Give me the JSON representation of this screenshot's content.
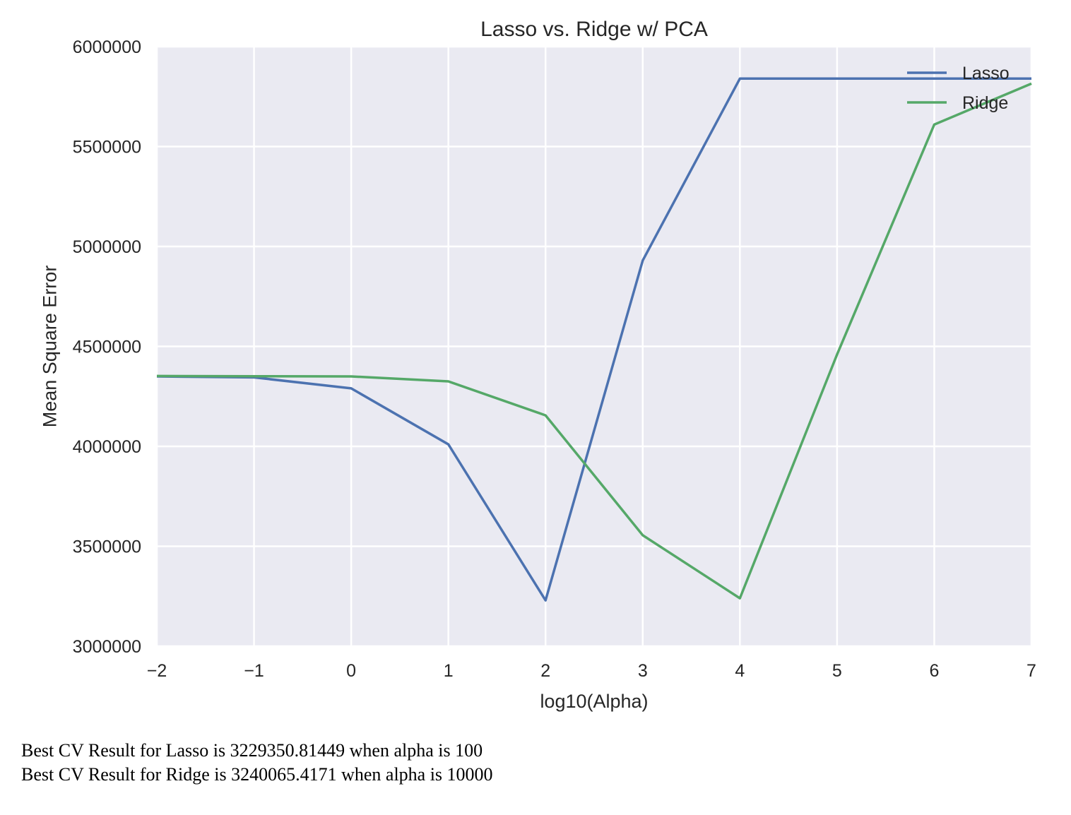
{
  "chart_data": {
    "type": "line",
    "title": "Lasso vs. Ridge w/ PCA",
    "xlabel": "log10(Alpha)",
    "ylabel": "Mean Square Error",
    "xlim": [
      -2,
      7
    ],
    "ylim": [
      3000000,
      6000000
    ],
    "xticks": [
      -2,
      -1,
      0,
      1,
      2,
      3,
      4,
      5,
      6,
      7
    ],
    "xtick_labels": [
      "−2",
      "−1",
      "0",
      "1",
      "2",
      "3",
      "4",
      "5",
      "6",
      "7"
    ],
    "yticks": [
      3000000,
      3500000,
      4000000,
      4500000,
      5000000,
      5500000,
      6000000
    ],
    "ytick_labels": [
      "3000000",
      "3500000",
      "4000000",
      "4500000",
      "5000000",
      "5500000",
      "6000000"
    ],
    "grid": true,
    "legend_position": "top-right",
    "background_color": "#eaeaf2",
    "grid_color": "#ffffff",
    "x": [
      -2,
      -1,
      0,
      1,
      2,
      3,
      4,
      5,
      6,
      7
    ],
    "series": [
      {
        "name": "Lasso",
        "color": "#4c72b0",
        "values": [
          4350000,
          4345000,
          4290000,
          4010000,
          3229350,
          4930000,
          5840000,
          5840000,
          5840000,
          5840000
        ]
      },
      {
        "name": "Ridge",
        "color": "#55a868",
        "values": [
          4352000,
          4351000,
          4350000,
          4325000,
          4155000,
          3555000,
          3240065,
          4460000,
          5610000,
          5815000
        ]
      }
    ]
  },
  "output": {
    "lines": [
      "Best CV Result for Lasso is 3229350.81449 when alpha is 100",
      "Best CV Result for Ridge is 3240065.4171 when alpha is 10000"
    ]
  }
}
